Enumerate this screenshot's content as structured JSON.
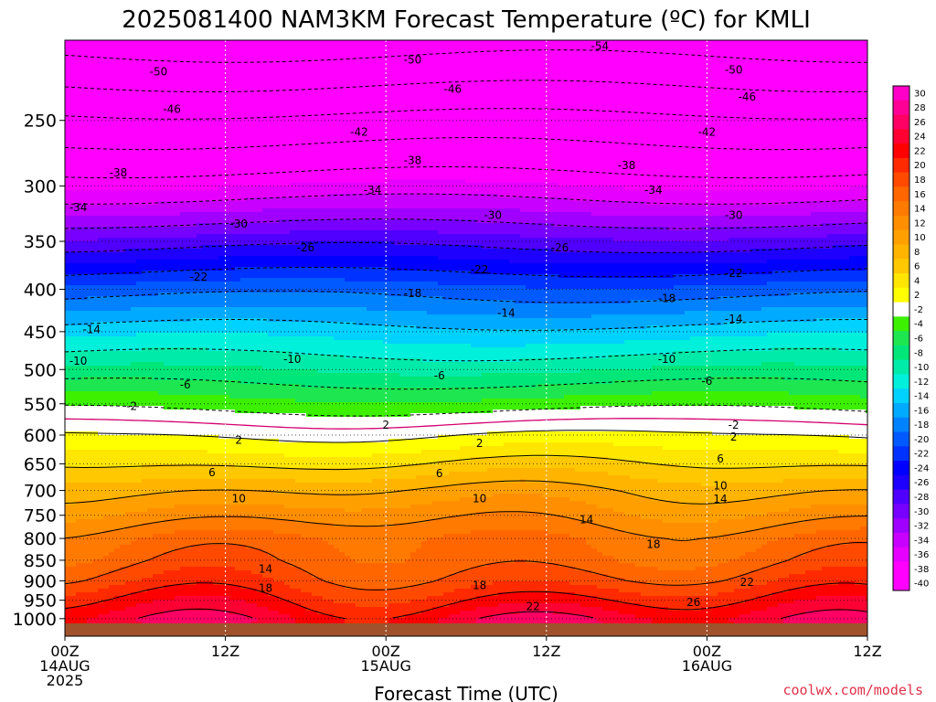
{
  "chart_data": {
    "type": "heatmap",
    "title": "2025081400 NAM3KM Forecast Temperature (ºC) for KMLI",
    "xlabel": "Forecast Time (UTC)",
    "ylabel": "",
    "credit": "coolwx.com/models",
    "credit_color": "#e0314a",
    "x_hours_range": [
      0,
      60
    ],
    "x_ticks": [
      {
        "hour": 0,
        "labels": [
          "00Z",
          "14AUG",
          "2025"
        ]
      },
      {
        "hour": 12,
        "labels": [
          "12Z"
        ]
      },
      {
        "hour": 24,
        "labels": [
          "00Z",
          "15AUG"
        ]
      },
      {
        "hour": 36,
        "labels": [
          "12Z"
        ]
      },
      {
        "hour": 48,
        "labels": [
          "00Z",
          "16AUG"
        ]
      },
      {
        "hour": 60,
        "labels": [
          "12Z"
        ]
      }
    ],
    "y_pressure_range_hpa": [
      1050,
      200
    ],
    "y_scale": "log",
    "y_ticks": [
      250,
      300,
      350,
      400,
      450,
      500,
      550,
      600,
      650,
      700,
      750,
      800,
      850,
      900,
      950,
      1000
    ],
    "grid": true,
    "colorbar": {
      "levels": [
        30,
        28,
        26,
        24,
        22,
        20,
        18,
        16,
        14,
        12,
        10,
        8,
        6,
        4,
        2,
        -2,
        -4,
        -6,
        -8,
        -10,
        -12,
        -14,
        -16,
        -18,
        -20,
        -22,
        -24,
        -26,
        -28,
        -30,
        -32,
        -34,
        -36,
        -38,
        -40
      ],
      "colors": [
        "#ff00c8",
        "#ff0096",
        "#ff0064",
        "#ff0032",
        "#ff0000",
        "#ff2a00",
        "#ff4a00",
        "#ff6600",
        "#ff7a00",
        "#ff8e00",
        "#ffa000",
        "#ffb400",
        "#ffc800",
        "#ffe600",
        "#ffff00",
        "#ffffff",
        "#3cf000",
        "#1ee650",
        "#00e678",
        "#00ebaa",
        "#00f0dc",
        "#00d2ff",
        "#00aaff",
        "#0082ff",
        "#005aff",
        "#0032ff",
        "#0000ff",
        "#1e00ff",
        "#5000ff",
        "#7800ff",
        "#a000ff",
        "#c800ff",
        "#e600ff",
        "#ff00ff",
        "#ff00ff"
      ]
    },
    "sample_profile": [
      {
        "p": 200,
        "t": -56
      },
      {
        "p": 250,
        "t": -45
      },
      {
        "p": 300,
        "t": -36
      },
      {
        "p": 350,
        "t": -27
      },
      {
        "p": 400,
        "t": -19
      },
      {
        "p": 450,
        "t": -13
      },
      {
        "p": 500,
        "t": -8
      },
      {
        "p": 550,
        "t": -3
      },
      {
        "p": 600,
        "t": 2
      },
      {
        "p": 650,
        "t": 6
      },
      {
        "p": 700,
        "t": 10
      },
      {
        "p": 750,
        "t": 13
      },
      {
        "p": 800,
        "t": 16
      },
      {
        "p": 850,
        "t": 17
      },
      {
        "p": 900,
        "t": 19
      },
      {
        "p": 950,
        "t": 22
      },
      {
        "p": 1000,
        "t": 25
      }
    ],
    "contour_labels": [
      {
        "value": "-54",
        "hour": 40,
        "p": 203
      },
      {
        "value": "-50",
        "hour": 7,
        "p": 218
      },
      {
        "value": "-50",
        "hour": 26,
        "p": 211
      },
      {
        "value": "-50",
        "hour": 50,
        "p": 217
      },
      {
        "value": "-46",
        "hour": 8,
        "p": 242
      },
      {
        "value": "-46",
        "hour": 29,
        "p": 229
      },
      {
        "value": "-46",
        "hour": 51,
        "p": 234
      },
      {
        "value": "-42",
        "hour": 22,
        "p": 258
      },
      {
        "value": "-42",
        "hour": 48,
        "p": 258
      },
      {
        "value": "-38",
        "hour": 4,
        "p": 289
      },
      {
        "value": "-38",
        "hour": 26,
        "p": 279
      },
      {
        "value": "-38",
        "hour": 42,
        "p": 283
      },
      {
        "value": "-34",
        "hour": 1,
        "p": 318
      },
      {
        "value": "-34",
        "hour": 23,
        "p": 303
      },
      {
        "value": "-34",
        "hour": 44,
        "p": 303
      },
      {
        "value": "-30",
        "hour": 13,
        "p": 333
      },
      {
        "value": "-30",
        "hour": 32,
        "p": 325
      },
      {
        "value": "-30",
        "hour": 50,
        "p": 325
      },
      {
        "value": "-26",
        "hour": 18,
        "p": 356
      },
      {
        "value": "-26",
        "hour": 37,
        "p": 356
      },
      {
        "value": "-22",
        "hour": 10,
        "p": 386
      },
      {
        "value": "-22",
        "hour": 31,
        "p": 378
      },
      {
        "value": "-22",
        "hour": 50,
        "p": 382
      },
      {
        "value": "-18",
        "hour": 26,
        "p": 404
      },
      {
        "value": "-18",
        "hour": 45,
        "p": 410
      },
      {
        "value": "-14",
        "hour": 2,
        "p": 447
      },
      {
        "value": "-14",
        "hour": 33,
        "p": 427
      },
      {
        "value": "-14",
        "hour": 50,
        "p": 434
      },
      {
        "value": "-10",
        "hour": 1,
        "p": 488
      },
      {
        "value": "-10",
        "hour": 17,
        "p": 485
      },
      {
        "value": "-10",
        "hour": 45,
        "p": 485
      },
      {
        "value": "-6",
        "hour": 9,
        "p": 521
      },
      {
        "value": "-6",
        "hour": 28,
        "p": 508
      },
      {
        "value": "-6",
        "hour": 48,
        "p": 516
      },
      {
        "value": "-2",
        "hour": 5,
        "p": 553
      },
      {
        "value": "-2",
        "hour": 50,
        "p": 583
      },
      {
        "value": "2",
        "hour": 24,
        "p": 583
      },
      {
        "value": "2",
        "hour": 13,
        "p": 608
      },
      {
        "value": "2",
        "hour": 31,
        "p": 613
      },
      {
        "value": "2",
        "hour": 50,
        "p": 602
      },
      {
        "value": "6",
        "hour": 11,
        "p": 665
      },
      {
        "value": "6",
        "hour": 28,
        "p": 667
      },
      {
        "value": "6",
        "hour": 49,
        "p": 640
      },
      {
        "value": "10",
        "hour": 13,
        "p": 715
      },
      {
        "value": "10",
        "hour": 31,
        "p": 715
      },
      {
        "value": "10",
        "hour": 49,
        "p": 690
      },
      {
        "value": "14",
        "hour": 39,
        "p": 758
      },
      {
        "value": "14",
        "hour": 49,
        "p": 716
      },
      {
        "value": "14",
        "hour": 15,
        "p": 870
      },
      {
        "value": "18",
        "hour": 44,
        "p": 812
      },
      {
        "value": "18",
        "hour": 15,
        "p": 918
      },
      {
        "value": "18",
        "hour": 31,
        "p": 911
      },
      {
        "value": "22",
        "hour": 51,
        "p": 902
      },
      {
        "value": "22",
        "hour": 35,
        "p": 965
      },
      {
        "value": "26",
        "hour": 47,
        "p": 954
      }
    ],
    "ground_color": "#a0522d",
    "ground_from_hpa": 1013
  }
}
